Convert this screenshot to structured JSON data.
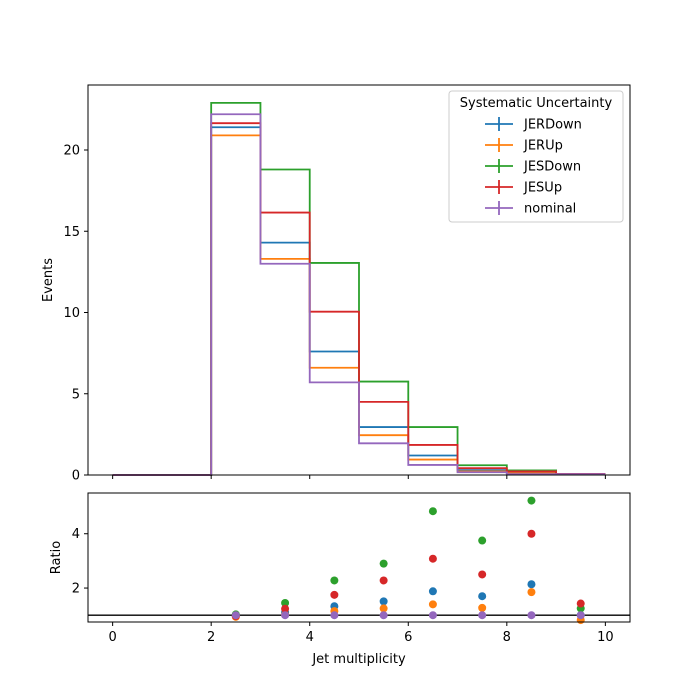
{
  "chart_data": [
    {
      "type": "step-histogram",
      "panel": "main",
      "xlabel": "",
      "ylabel": "Events",
      "xlim": [
        -0.5,
        10.5
      ],
      "ylim": [
        0,
        24
      ],
      "yticks": [
        0,
        5,
        10,
        15,
        20
      ],
      "bin_edges": [
        0,
        1,
        2,
        3,
        4,
        5,
        6,
        7,
        8,
        9,
        10
      ],
      "legend": {
        "title": "Systematic Uncertainty",
        "placement": "top-right"
      },
      "grid": false,
      "series": [
        {
          "name": "JERDown",
          "color": "#1f77b4",
          "values": [
            0,
            0,
            21.4,
            14.3,
            7.6,
            2.95,
            1.2,
            0.3,
            0.12,
            0.05
          ]
        },
        {
          "name": "JERUp",
          "color": "#ff7f0e",
          "values": [
            0,
            0,
            20.9,
            13.3,
            6.6,
            2.45,
            0.95,
            0.22,
            0.1,
            0.04
          ]
        },
        {
          "name": "JESDown",
          "color": "#2ca02c",
          "values": [
            0,
            0,
            22.9,
            18.8,
            13.05,
            5.75,
            2.95,
            0.6,
            0.28,
            0.06
          ]
        },
        {
          "name": "JESUp",
          "color": "#d62728",
          "values": [
            0,
            0,
            21.65,
            16.15,
            10.05,
            4.5,
            1.85,
            0.42,
            0.22,
            0.07
          ]
        },
        {
          "name": "nominal",
          "color": "#9467bd",
          "values": [
            0,
            0,
            22.2,
            13.0,
            5.7,
            1.95,
            0.62,
            0.17,
            0.055,
            0.05
          ]
        }
      ]
    },
    {
      "type": "scatter",
      "panel": "ratio",
      "xlabel": "Jet multiplicity",
      "ylabel": "Ratio",
      "xlim": [
        -0.5,
        10.5
      ],
      "ylim": [
        0.75,
        5.5
      ],
      "xticks": [
        0,
        2,
        4,
        6,
        8,
        10
      ],
      "yticks": [
        2,
        4
      ],
      "reference_line": 1,
      "x": [
        2.5,
        3.5,
        4.5,
        5.5,
        6.5,
        7.5,
        8.5,
        9.5
      ],
      "series": [
        {
          "name": "JERDown",
          "color": "#1f77b4",
          "values": [
            0.97,
            1.1,
            1.33,
            1.51,
            1.88,
            1.7,
            2.14,
            1.0
          ]
        },
        {
          "name": "JERUp",
          "color": "#ff7f0e",
          "values": [
            0.94,
            1.02,
            1.15,
            1.25,
            1.4,
            1.27,
            1.85,
            0.82
          ]
        },
        {
          "name": "JESDown",
          "color": "#2ca02c",
          "values": [
            1.03,
            1.45,
            2.28,
            2.9,
            4.83,
            3.75,
            5.22,
            1.25
          ]
        },
        {
          "name": "JESUp",
          "color": "#d62728",
          "values": [
            0.97,
            1.24,
            1.75,
            2.28,
            3.08,
            2.5,
            4.0,
            1.43
          ]
        },
        {
          "name": "nominal",
          "color": "#9467bd",
          "values": [
            1.0,
            1.0,
            1.0,
            1.0,
            1.0,
            1.0,
            1.0,
            1.0
          ]
        }
      ]
    }
  ]
}
